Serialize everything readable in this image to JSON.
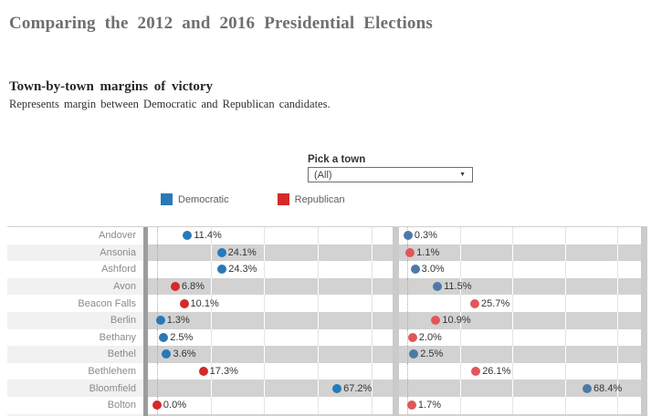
{
  "header": {
    "title": "Comparing the 2012 and 2016 Presidential Elections",
    "section_title": "Town-by-town margins of victory",
    "section_subtitle": "Represents margin between Democratic and Republican candidates."
  },
  "controls": {
    "filter_label": "Pick a town",
    "filter_value": "(All)",
    "dropdown_caret": "▼"
  },
  "legend": {
    "items": [
      {
        "label": "Democratic",
        "color": "#2879b8"
      },
      {
        "label": "Republican",
        "color": "#d42a28"
      }
    ]
  },
  "chart_data": {
    "type": "scatter",
    "description": "Dot plot of margin of victory per town, one panel per election year",
    "axis": {
      "unit": "%",
      "grid_values": [
        20,
        40,
        60,
        80
      ],
      "range_approx": [
        -3,
        88
      ],
      "grid": true
    },
    "panels": [
      {
        "year": "2012",
        "zero_pct": 3.7,
        "pct_per_point": 1.095,
        "colors": {
          "Democratic": "#2879b8",
          "Republican": "#d42a28"
        }
      },
      {
        "year": "2016",
        "zero_pct": 3.4,
        "pct_per_point": 1.087,
        "colors": {
          "Democratic": "#4e79a7",
          "Republican": "#e15759"
        }
      }
    ],
    "rows": [
      {
        "town": "Andover",
        "margins": [
          {
            "party": "Democratic",
            "value": 11.4,
            "label": "11.4%"
          },
          {
            "party": "Democratic",
            "value": 0.3,
            "label": "0.3%"
          }
        ]
      },
      {
        "town": "Ansonia",
        "margins": [
          {
            "party": "Democratic",
            "value": 24.1,
            "label": "24.1%"
          },
          {
            "party": "Republican",
            "value": 1.1,
            "label": "1.1%"
          }
        ]
      },
      {
        "town": "Ashford",
        "margins": [
          {
            "party": "Democratic",
            "value": 24.3,
            "label": "24.3%"
          },
          {
            "party": "Democratic",
            "value": 3.0,
            "label": "3.0%"
          }
        ]
      },
      {
        "town": "Avon",
        "margins": [
          {
            "party": "Republican",
            "value": 6.8,
            "label": "6.8%"
          },
          {
            "party": "Democratic",
            "value": 11.5,
            "label": "11.5%"
          }
        ]
      },
      {
        "town": "Beacon Falls",
        "margins": [
          {
            "party": "Republican",
            "value": 10.1,
            "label": "10.1%"
          },
          {
            "party": "Republican",
            "value": 25.7,
            "label": "25.7%"
          }
        ]
      },
      {
        "town": "Berlin",
        "margins": [
          {
            "party": "Democratic",
            "value": 1.3,
            "label": "1.3%"
          },
          {
            "party": "Republican",
            "value": 10.9,
            "label": "10.9%"
          }
        ]
      },
      {
        "town": "Bethany",
        "margins": [
          {
            "party": "Democratic",
            "value": 2.5,
            "label": "2.5%"
          },
          {
            "party": "Republican",
            "value": 2.0,
            "label": "2.0%"
          }
        ]
      },
      {
        "town": "Bethel",
        "margins": [
          {
            "party": "Democratic",
            "value": 3.6,
            "label": "3.6%"
          },
          {
            "party": "Democratic",
            "value": 2.5,
            "label": "2.5%"
          }
        ]
      },
      {
        "town": "Bethlehem",
        "margins": [
          {
            "party": "Republican",
            "value": 17.3,
            "label": "17.3%"
          },
          {
            "party": "Republican",
            "value": 26.1,
            "label": "26.1%"
          }
        ]
      },
      {
        "town": "Bloomfield",
        "margins": [
          {
            "party": "Democratic",
            "value": 67.2,
            "label": "67.2%"
          },
          {
            "party": "Democratic",
            "value": 68.4,
            "label": "68.4%"
          }
        ]
      },
      {
        "town": "Bolton",
        "margins": [
          {
            "party": "Republican",
            "value": 0.0,
            "label": "0.0%"
          },
          {
            "party": "Republican",
            "value": 1.7,
            "label": "1.7%"
          }
        ]
      }
    ]
  }
}
